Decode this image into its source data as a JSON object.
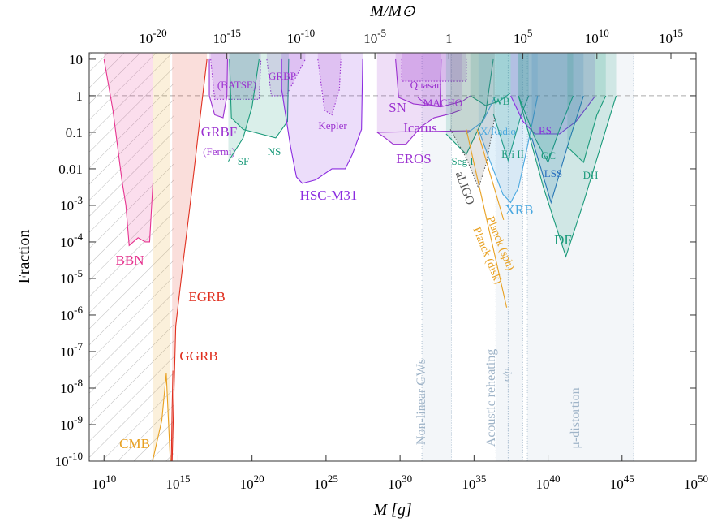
{
  "chart_data": {
    "type": "constraints",
    "xlabel": "M [g]",
    "ylabel": "Fraction",
    "x2label": "M/M⊙",
    "xscale": "log",
    "yscale": "log",
    "xlim": [
      1000000000.0,
      1e+50
    ],
    "ylim": [
      1e-10,
      15
    ],
    "x2lim": [
      5e-25,
      5e+16
    ],
    "xticks": [
      {
        "value": 10000000000.0,
        "label": "10^10"
      },
      {
        "value": 1000000000000000.0,
        "label": "10^15"
      },
      {
        "value": 1e+20,
        "label": "10^20"
      },
      {
        "value": 1e+25,
        "label": "10^25"
      },
      {
        "value": 1e+30,
        "label": "10^30"
      },
      {
        "value": 1e+35,
        "label": "10^35"
      },
      {
        "value": 1e+40,
        "label": "10^40"
      },
      {
        "value": 1e+45,
        "label": "10^45"
      },
      {
        "value": 1e+50,
        "label": "10^50"
      }
    ],
    "x2ticks": [
      {
        "value": 1e-20,
        "label": "10^-20"
      },
      {
        "value": 1e-15,
        "label": "10^-15"
      },
      {
        "value": 1e-10,
        "label": "10^-10"
      },
      {
        "value": 1e-05,
        "label": "10^-5"
      },
      1,
      {
        "value": 100000.0,
        "label": "10^5"
      },
      {
        "value": 10000000000.0,
        "label": "10^10"
      },
      {
        "value": 1000000000000000.0,
        "label": "10^15"
      }
    ],
    "yticks": [
      {
        "value": 1e-10,
        "label": "10^-10"
      },
      {
        "value": 1e-09,
        "label": "10^-9"
      },
      {
        "value": 1e-08,
        "label": "10^-8"
      },
      {
        "value": 1e-07,
        "label": "10^-7"
      },
      {
        "value": 1e-06,
        "label": "10^-6"
      },
      {
        "value": 1e-05,
        "label": "10^-5"
      },
      {
        "value": 0.0001,
        "label": "10^-4"
      },
      {
        "value": 0.001,
        "label": "10^-3"
      },
      0.01,
      0.1,
      1,
      10
    ],
    "reference_line": 1,
    "hatch_x": [
      1000000000.0,
      500000000000000.0
    ],
    "bands": [
      {
        "name": "Non-linear GWs",
        "x": [
          3e+31,
          3e+33
        ]
      },
      {
        "name": "Acoustic reheating",
        "x": [
          3e+36,
          2e+37
        ]
      },
      {
        "name": "n/p",
        "x": [
          2e+37,
          2e+38
        ]
      },
      {
        "name": "μ-distortion",
        "x": [
          4e+38,
          6e+45
        ]
      }
    ],
    "series": [
      {
        "name": "BBN",
        "color": "#e6338f",
        "style": "solid",
        "fill": true,
        "x": [
          10000000000.0,
          40000000000.0,
          160000000000.0,
          300000000000.0,
          500000000000.0,
          2000000000000.0,
          6000000000000.0,
          12000000000000.0,
          20000000000000.0
        ],
        "values": [
          10,
          0.4,
          0.005,
          0.001,
          8e-05,
          0.00013,
          0.0001,
          0.0001,
          0.004
        ]
      },
      {
        "name": "CMB",
        "color": "#e8a020",
        "style": "solid",
        "fill": true,
        "x": [
          19000000000000.0,
          80000000000000.0,
          160000000000000.0,
          300000000000000.0
        ],
        "values": [
          1e-10,
          1.3e-09,
          2.5e-08,
          1e-10
        ]
      },
      {
        "name": "GGRB",
        "color": "#e03020",
        "style": "solid",
        "fill": false,
        "x": [
          350000000000000.0,
          400000000000000.0,
          450000000000000.0
        ],
        "values": [
          1e-10,
          3e-09,
          3e-08
        ]
      },
      {
        "name": "EGRB",
        "color": "#e03020",
        "style": "solid",
        "fill": true,
        "x": [
          400000000000000.0,
          500000000000000.0,
          700000000000000.0,
          2000000000000000.0,
          7000000000000000.0,
          2.5e+16,
          9e+16
        ],
        "values": [
          1e-10,
          3e-09,
          5e-07,
          2e-05,
          0.0013,
          0.12,
          10
        ]
      },
      {
        "name": "GRBF",
        "note": "(Fermi)",
        "color": "#9b30d0",
        "style": "solid",
        "fill": true,
        "x": [
          1.3e+17,
          1.3e+17,
          3e+17,
          1.1e+18,
          2e+18,
          2.2e+18
        ],
        "values": [
          10,
          1,
          0.3,
          0.25,
          1,
          10
        ]
      },
      {
        "name": "(BATSE)",
        "color": "#9b30d0",
        "style": "dotted",
        "fill": true,
        "x": [
          1.6e+17,
          3e+17,
          3e+20,
          4e+20
        ],
        "values": [
          10,
          0.8,
          0.8,
          10
        ]
      },
      {
        "name": "GRBP",
        "color": "#9b30d0",
        "style": "dotted",
        "fill": true,
        "x": [
          1e+21,
          2e+21,
          2e+22,
          4e+23
        ],
        "values": [
          10,
          1,
          1,
          10
        ]
      },
      {
        "name": "SF",
        "color": "#1a9a7a",
        "style": "solid",
        "fill": true,
        "x": [
          2.5e+18,
          2.5e+19,
          1e+20,
          3e+20
        ],
        "values": [
          0.016,
          0.07,
          0.5,
          10
        ]
      },
      {
        "name": "NS",
        "color": "#1a9a7a",
        "style": "solid",
        "fill": true,
        "x": [
          3e+18,
          4e+18,
          2.5e+19,
          4e+21,
          2.5e+22,
          3e+22
        ],
        "values": [
          10,
          0.25,
          0.12,
          0.07,
          0.2,
          10
        ]
      },
      {
        "name": "HSC-M31",
        "color": "#8b2be0",
        "style": "solid",
        "fill": true,
        "x": [
          1e+22,
          1e+22,
          4e+22,
          1e+23,
          2.5e+23,
          2e+24,
          2.5e+25,
          2e+26,
          6e+26,
          2.5e+27,
          3e+27
        ],
        "values": [
          10,
          1.5,
          0.04,
          0.006,
          0.004,
          0.005,
          0.01,
          0.01,
          0.025,
          0.12,
          10
        ]
      },
      {
        "name": "Kepler",
        "color": "#9b30d0",
        "style": "dotted",
        "fill": true,
        "x": [
          2.8e+24,
          8e+24,
          2.5e+25,
          8e+25,
          1e+26
        ],
        "values": [
          10,
          0.4,
          0.3,
          1.5,
          10
        ]
      },
      {
        "name": "Quasar",
        "color": "#9b30d0",
        "style": "dotted",
        "fill": true,
        "x": [
          1.3e+30,
          1.3e+30,
          3e+34,
          3e+34
        ],
        "values": [
          10,
          2.5,
          2.5,
          10
        ]
      },
      {
        "name": "SN",
        "color": "#9b30d0",
        "style": "solid",
        "fill": true,
        "x": [
          5e+29,
          8e+29,
          8e+30,
          5e+31,
          5e+32,
          6e+32
        ],
        "values": [
          10,
          0.9,
          0.6,
          0.55,
          0.5,
          10
        ]
      },
      {
        "name": "MACHO",
        "color": "#9b30d0",
        "style": "solid",
        "fill": false,
        "x": [
          1.6e+31,
          5e+31,
          6e+32,
          1.6e+34,
          5.6e+34
        ],
        "values": [
          0.9,
          0.6,
          0.5,
          0.7,
          1
        ]
      },
      {
        "name": "Icarus",
        "color": "#9b30d0",
        "style": "solid",
        "fill": false,
        "x": [
          3e+28,
          6e+34
        ],
        "values": [
          0.1,
          0.11
        ]
      },
      {
        "name": "EROS",
        "color": "#9b30d0",
        "style": "solid",
        "fill": true,
        "x": [
          2.8e+28,
          1e+29,
          3.5e+29,
          2.5e+30,
          1e+31,
          3.2e+31,
          2e+32,
          2.5e+33,
          1.6e+34
        ],
        "values": [
          0.1,
          0.07,
          0.047,
          0.047,
          0.09,
          0.15,
          0.25,
          0.32,
          0.42
        ]
      },
      {
        "name": "Seg I",
        "color": "#1a9a7a",
        "style": "solid",
        "fill": true,
        "x": [
          1.3e+33,
          3e+34,
          6e+35,
          2e+36
        ],
        "values": [
          0.09,
          0.025,
          0.32,
          10
        ]
      },
      {
        "name": "Eri II",
        "color": "#1a9a7a",
        "style": "solid",
        "fill": true,
        "x": [
          2e+36,
          2e+37,
          1.6e+38,
          5e+38
        ],
        "values": [
          0.32,
          0.017,
          0.32,
          1
        ]
      },
      {
        "name": "WB",
        "color": "#1a9a7a",
        "style": "solid",
        "fill": true,
        "x": [
          5.6e+34,
          6e+35,
          5e+36,
          3e+37
        ],
        "values": [
          1,
          0.54,
          0.7,
          1.2
        ]
      },
      {
        "name": "X/Radio",
        "color": "#4aa8e0",
        "style": "solid",
        "fill": false,
        "x": [
          3e+34,
          4e+35,
          2.5e+36
        ],
        "values": [
          0.09,
          0.2,
          0.9
        ]
      },
      {
        "name": "XRB",
        "color": "#4aa8e0",
        "style": "solid",
        "fill": true,
        "x": [
          2e+35,
          1.3e+36,
          9e+36,
          3e+37,
          1e+38,
          4e+38,
          2e+39
        ],
        "values": [
          0.12,
          0.015,
          0.002,
          0.0012,
          0.003,
          0.04,
          1
        ]
      },
      {
        "name": "aLIGO",
        "color": "#555555",
        "style": "dotted",
        "fill": true,
        "x": [
          2.5e+33,
          3e+34,
          2e+35,
          7e+35,
          2.5e+36
        ],
        "values": [
          0.12,
          0.02,
          0.003,
          0.015,
          0.25
        ]
      },
      {
        "name": "Planck (sph)",
        "color": "#e8a020",
        "style": "solid",
        "fill": false,
        "x": [
          1.6e+35,
          1e+37
        ],
        "values": [
          0.12,
          0.0004
        ]
      },
      {
        "name": "Planck (disk)",
        "color": "#e8a020",
        "style": "solid",
        "fill": false,
        "x": [
          3e+34,
          1.6e+37
        ],
        "values": [
          0.12,
          1.6e-06
        ]
      },
      {
        "name": "RS",
        "color": "#8b2be0",
        "style": "solid",
        "fill": true,
        "x": [
          3e+37,
          2e+38,
          1.3e+39,
          6e+40,
          8e+41,
          1.6e+43
        ],
        "values": [
          1,
          0.2,
          0.09,
          0.09,
          0.2,
          1
        ]
      },
      {
        "name": "GC",
        "color": "#1a9a7a",
        "style": "solid",
        "fill": true,
        "x": [
          1e+38,
          1.3e+39,
          1e+40,
          6e+40,
          5e+41
        ],
        "values": [
          1,
          0.07,
          0.015,
          0.12,
          1
        ]
      },
      {
        "name": "LSS",
        "color": "#2a6fc0",
        "style": "solid",
        "fill": true,
        "x": [
          8e+38,
          1.6e+40,
          2e+41,
          2.5e+42
        ],
        "values": [
          0.07,
          0.0012,
          0.04,
          1
        ]
      },
      {
        "name": "DH",
        "color": "#1a9a7a",
        "style": "solid",
        "fill": true,
        "x": [
          2e+41,
          2.5e+42,
          2e+43,
          8e+43
        ],
        "values": [
          0.04,
          0.015,
          0.3,
          1
        ]
      },
      {
        "name": "DF",
        "color": "#1a9a7a",
        "style": "solid",
        "fill": true,
        "x": [
          1e+38,
          5e+39,
          1.6e+41,
          2.5e+42,
          4e+44
        ],
        "values": [
          1,
          0.003,
          4e-05,
          0.0012,
          1
        ]
      }
    ]
  }
}
